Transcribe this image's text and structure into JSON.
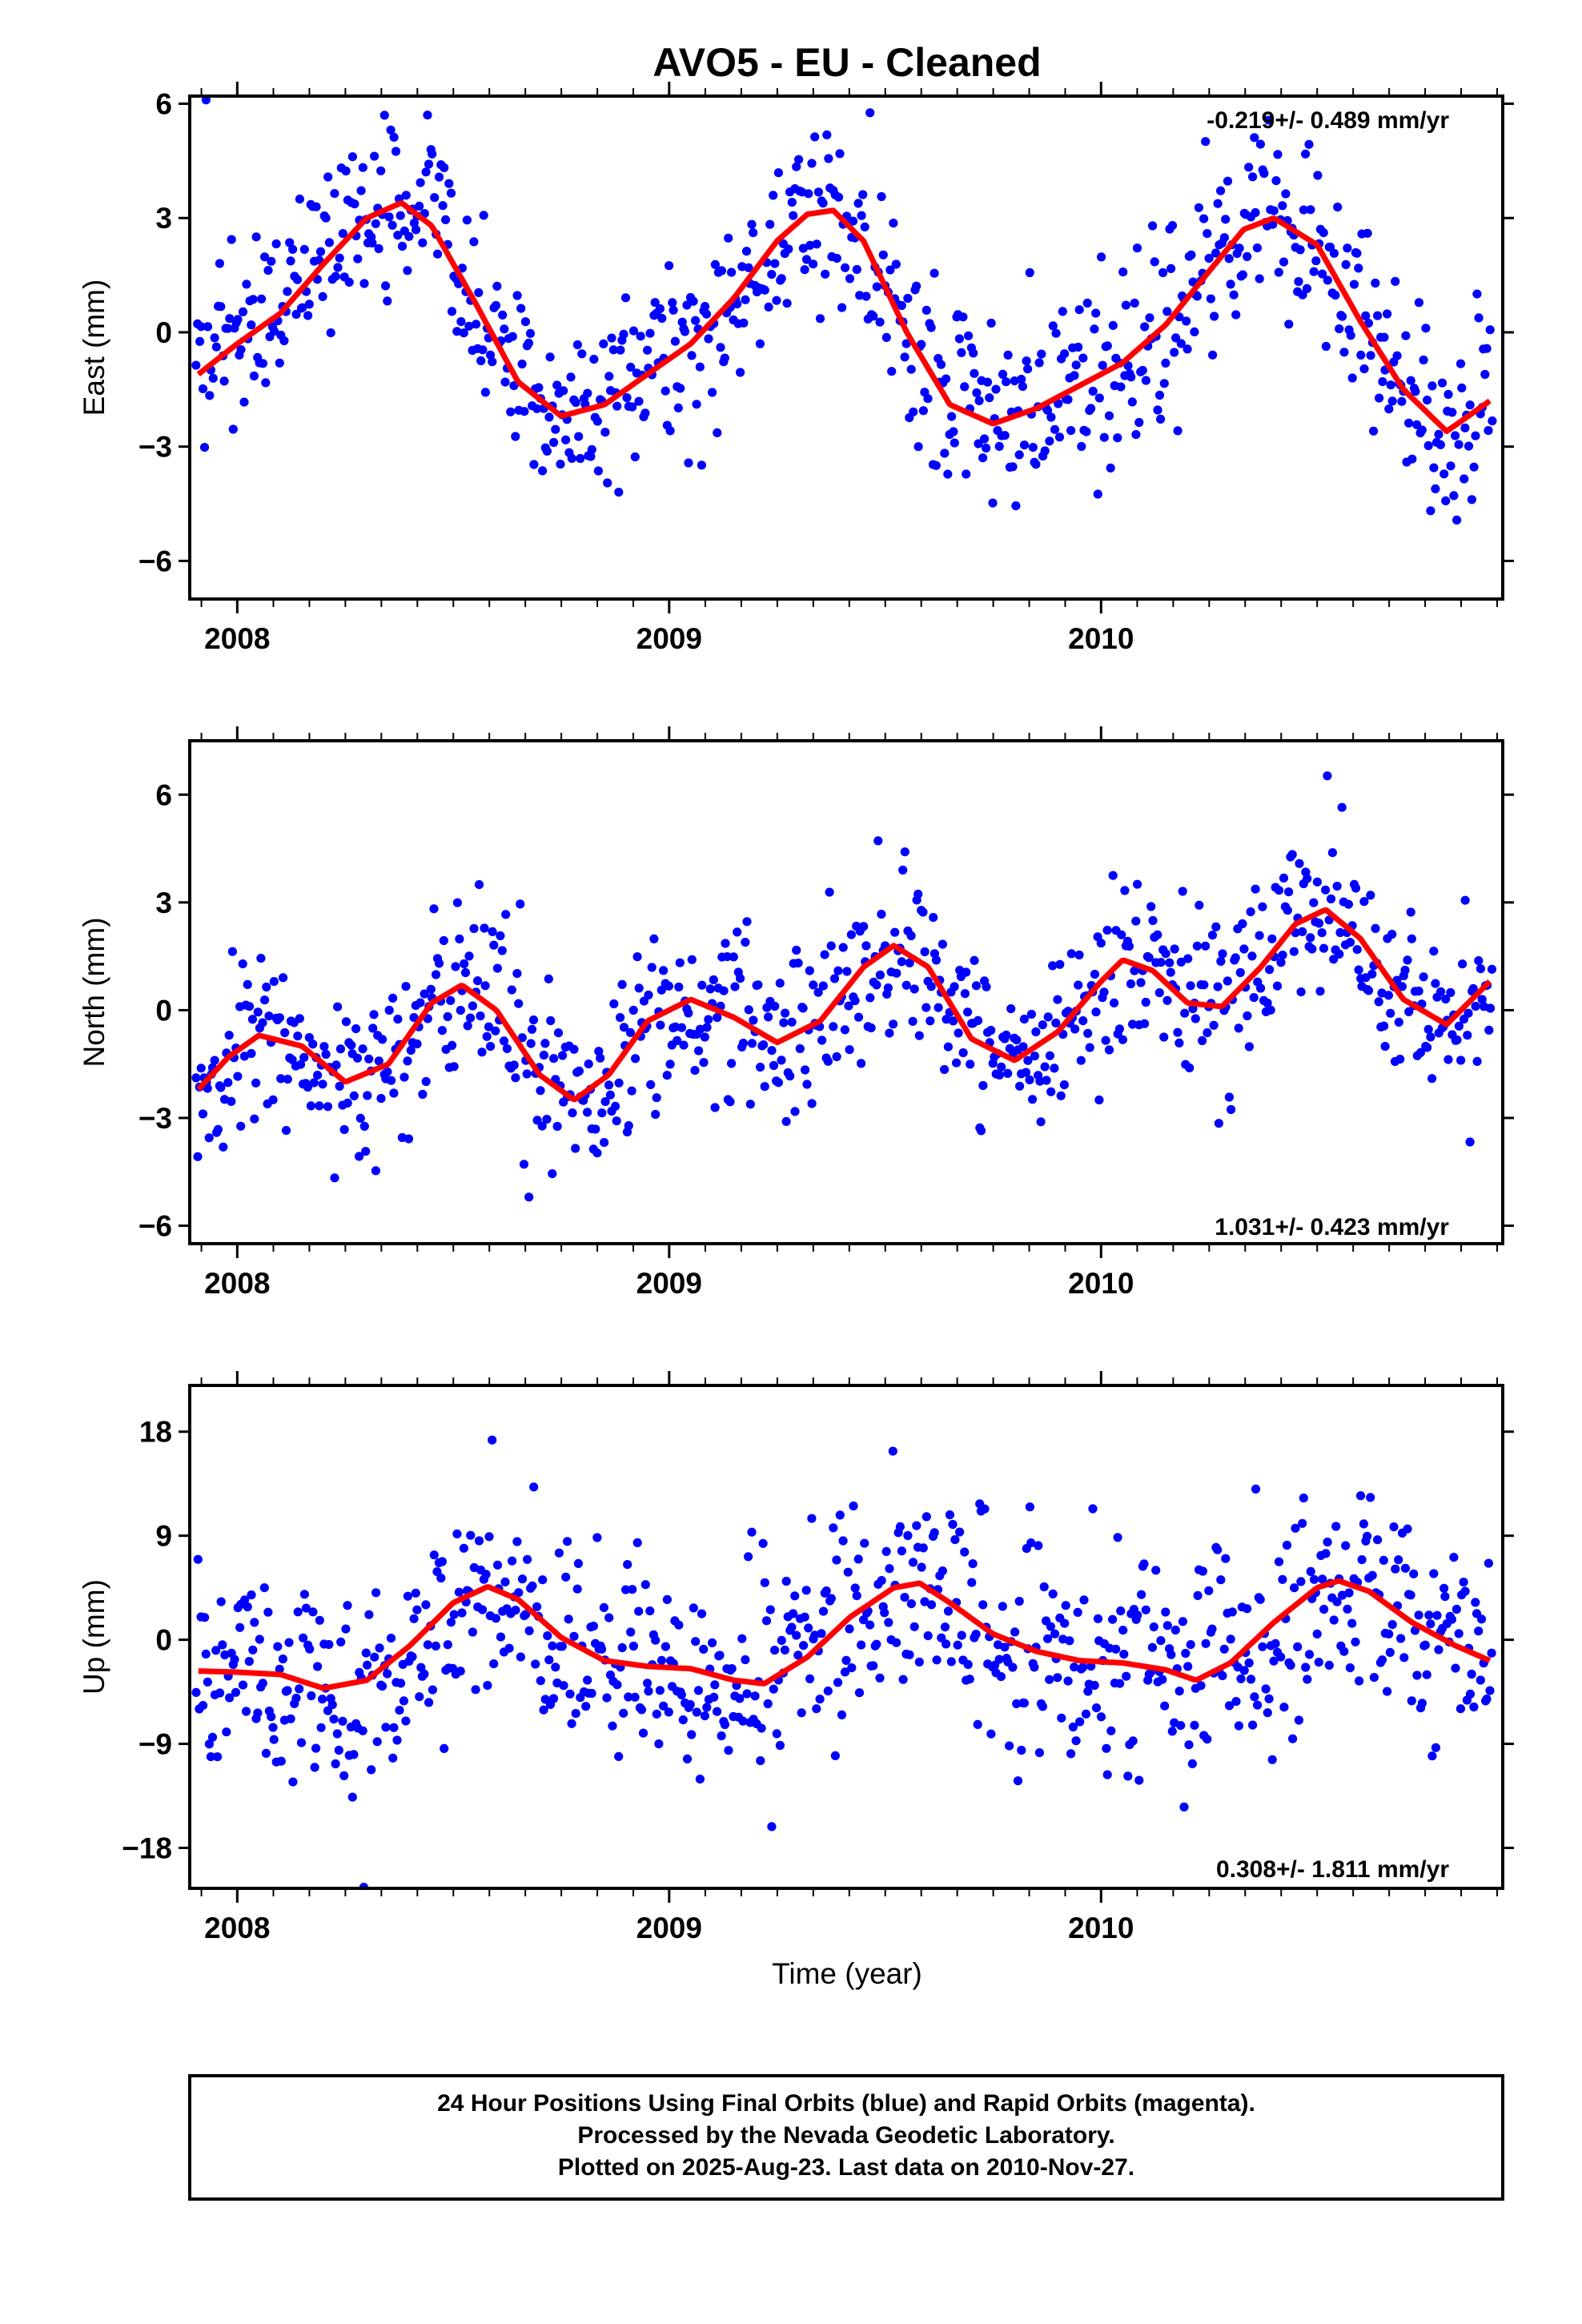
{
  "title": "AVO5  - EU - Cleaned",
  "xlabel": "Time (year)",
  "footer": {
    "lines": [
      "24 Hour Positions Using Final Orbits (blue) and Rapid Orbits (magenta).",
      "Processed by the Nevada Geodetic Laboratory.",
      "Plotted on 2025-Aug-23. Last data on 2010-Nov-27."
    ]
  },
  "colors": {
    "points": "#0000ff",
    "model": "#ff0000",
    "frame": "#000000"
  },
  "chart_data": [
    {
      "type": "scatter",
      "component": "east",
      "ylabel": "East (mm)",
      "rate": "-0.219+/- 0.489 mm/yr",
      "xlim": [
        2007.89,
        2010.93
      ],
      "ylim": [
        -7,
        6.2
      ],
      "xticks": [
        2008,
        2009,
        2010
      ],
      "yticks": [
        -6,
        -3,
        0,
        3,
        6
      ],
      "ytick_labels": [
        "−6",
        "−3",
        "0",
        "3",
        "6"
      ],
      "series": [
        {
          "x": [
            2007.91,
            2008.0,
            2008.1,
            2008.2,
            2008.3,
            2008.38,
            2008.45,
            2008.55,
            2008.65,
            2008.75,
            2008.85,
            2008.95,
            2009.05,
            2009.15,
            2009.25,
            2009.32,
            2009.38,
            2009.45,
            2009.55,
            2009.65,
            2009.75,
            2009.85,
            2009.95,
            2010.05,
            2010.15,
            2010.25,
            2010.33,
            2010.4,
            2010.5,
            2010.6,
            2010.7,
            2010.8,
            2010.9
          ],
          "y": [
            -1.1,
            -0.3,
            0.5,
            1.8,
            3.0,
            3.4,
            2.8,
            0.8,
            -1.3,
            -2.2,
            -1.9,
            -1.1,
            -0.3,
            0.9,
            2.4,
            3.1,
            3.2,
            2.4,
            0.0,
            -1.9,
            -2.4,
            -2.0,
            -1.4,
            -0.8,
            0.2,
            1.6,
            2.7,
            3.0,
            2.3,
            0.3,
            -1.5,
            -2.6,
            -1.8
          ]
        }
      ]
    },
    {
      "type": "scatter",
      "component": "north",
      "ylabel": "North (mm)",
      "rate": "1.031+/- 0.423 mm/yr",
      "xlim": [
        2007.89,
        2010.93
      ],
      "ylim": [
        -6.5,
        7.5
      ],
      "xticks": [
        2008,
        2009,
        2010
      ],
      "yticks": [
        -6,
        -3,
        0,
        3,
        6
      ],
      "ytick_labels": [
        "−6",
        "−3",
        "0",
        "3",
        "6"
      ],
      "series": [
        {
          "x": [
            2007.91,
            2007.98,
            2008.05,
            2008.15,
            2008.25,
            2008.35,
            2008.45,
            2008.52,
            2008.6,
            2008.7,
            2008.78,
            2008.86,
            2008.95,
            2009.05,
            2009.15,
            2009.25,
            2009.35,
            2009.45,
            2009.52,
            2009.6,
            2009.7,
            2009.8,
            2009.9,
            2010.0,
            2010.05,
            2010.12,
            2010.2,
            2010.28,
            2010.37,
            2010.45,
            2010.52,
            2010.6,
            2010.7,
            2010.8,
            2010.9
          ],
          "y": [
            -2.2,
            -1.3,
            -0.7,
            -1.0,
            -2.0,
            -1.5,
            0.2,
            0.7,
            0.0,
            -1.8,
            -2.5,
            -1.8,
            -0.3,
            0.3,
            -0.2,
            -0.9,
            -0.3,
            1.2,
            1.8,
            1.2,
            -0.8,
            -1.4,
            -0.6,
            0.8,
            1.4,
            1.1,
            0.2,
            0.1,
            1.2,
            2.4,
            2.8,
            2.0,
            0.3,
            -0.4,
            0.8
          ]
        }
      ]
    },
    {
      "type": "scatter",
      "component": "up",
      "ylabel": "Up (mm)",
      "rate": "0.308+/- 1.811 mm/yr",
      "xlim": [
        2007.89,
        2010.93
      ],
      "ylim": [
        -21.5,
        22
      ],
      "xticks": [
        2008,
        2009,
        2010
      ],
      "yticks": [
        -18,
        -9,
        0,
        9,
        18
      ],
      "ytick_labels": [
        "−18",
        "−9",
        "0",
        "9",
        "18"
      ],
      "series": [
        {
          "x": [
            2007.91,
            2008.0,
            2008.1,
            2008.2,
            2008.3,
            2008.4,
            2008.5,
            2008.58,
            2008.65,
            2008.75,
            2008.85,
            2008.95,
            2009.05,
            2009.15,
            2009.22,
            2009.32,
            2009.42,
            2009.52,
            2009.58,
            2009.65,
            2009.75,
            2009.85,
            2009.95,
            2010.05,
            2010.15,
            2010.22,
            2010.3,
            2010.4,
            2010.5,
            2010.55,
            2010.62,
            2010.72,
            2010.82,
            2010.9
          ],
          "y": [
            -2.7,
            -2.8,
            -3.0,
            -4.2,
            -3.5,
            -0.5,
            3.2,
            4.6,
            3.5,
            0.2,
            -1.8,
            -2.3,
            -2.5,
            -3.5,
            -3.8,
            -1.5,
            2.0,
            4.5,
            4.9,
            3.2,
            0.5,
            -1.0,
            -1.8,
            -2.0,
            -2.6,
            -3.5,
            -2.0,
            1.5,
            4.5,
            5.1,
            4.2,
            1.5,
            -0.5,
            -1.8
          ]
        }
      ]
    }
  ]
}
